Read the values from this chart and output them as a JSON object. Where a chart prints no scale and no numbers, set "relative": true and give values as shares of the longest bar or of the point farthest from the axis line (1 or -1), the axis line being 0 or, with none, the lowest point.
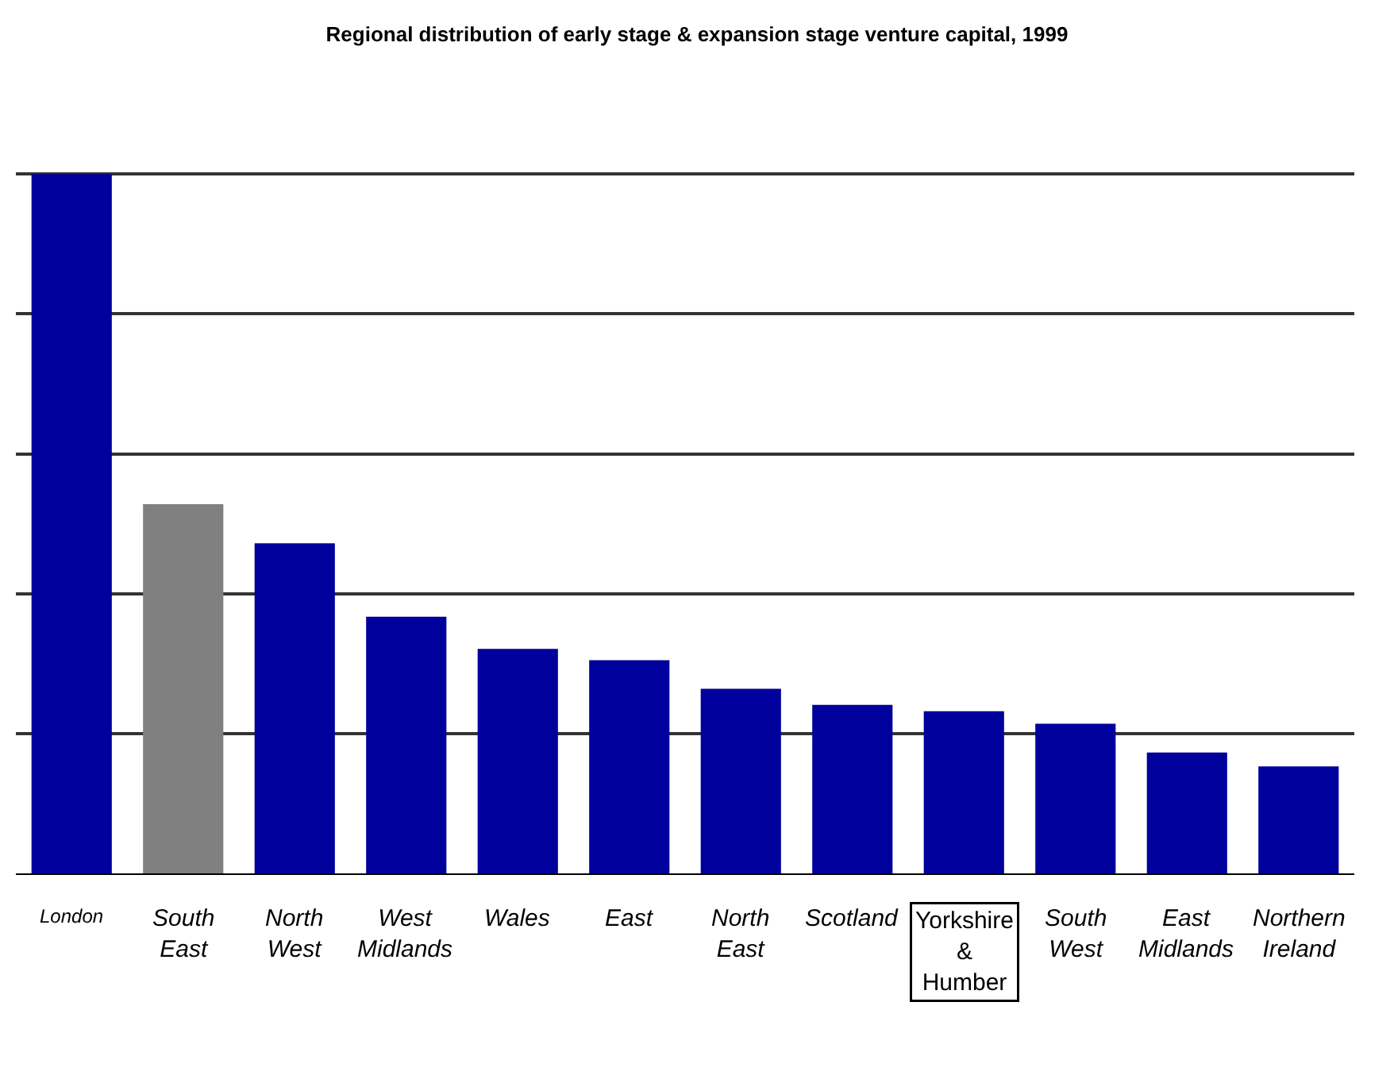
{
  "chart_data": {
    "type": "bar",
    "title": "Regional distribution of early stage & expansion stage venture capital, 1999",
    "categories": [
      "London",
      "South East",
      "North West",
      "West Midlands",
      "Wales",
      "East",
      "North East",
      "Scotland",
      "Yorkshire & Humber",
      "South West",
      "East Midlands",
      "Northern Ireland"
    ],
    "values": [
      1,
      0.528,
      0.472,
      0.367,
      0.321,
      0.305,
      0.264,
      0.241,
      0.232,
      0.214,
      0.173,
      0.153
    ],
    "colors": [
      "#00009c",
      "#808080",
      "#00009c",
      "#00009c",
      "#00009c",
      "#00009c",
      "#00009c",
      "#00009c",
      "#00009c",
      "#00009c",
      "#00009c",
      "#00009c"
    ],
    "relative": true,
    "grid": "y"
  }
}
